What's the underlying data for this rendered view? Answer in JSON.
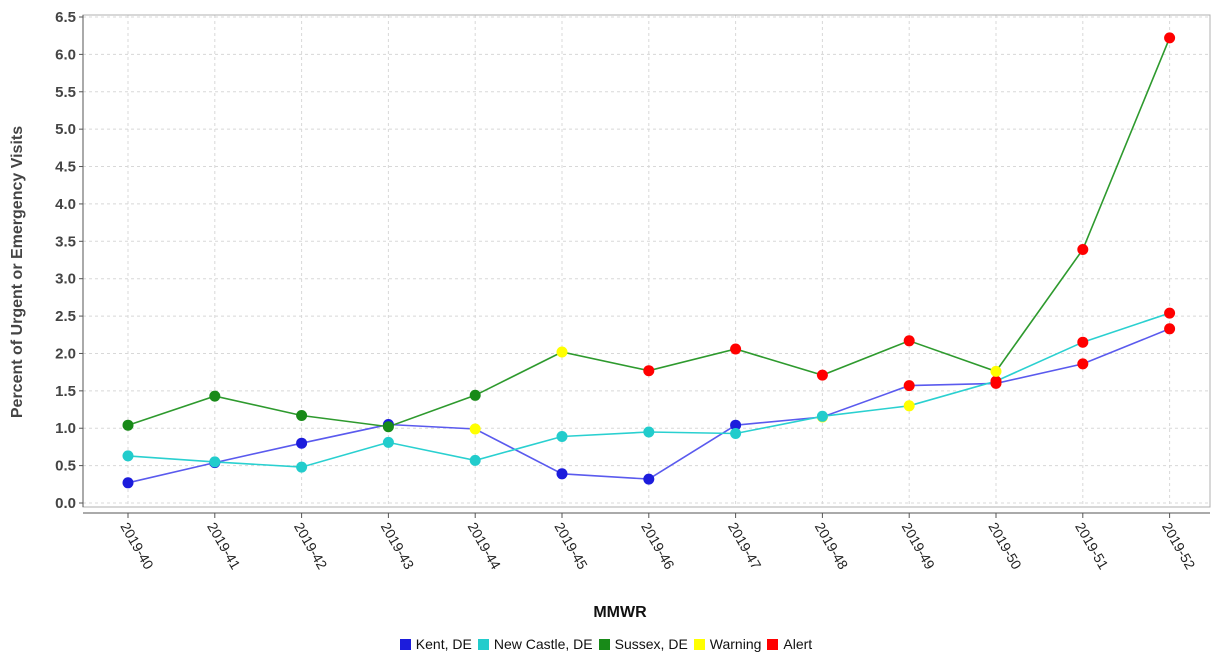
{
  "chart_data": {
    "type": "line",
    "xlabel": "MMWR",
    "ylabel": "Percent of Urgent or Emergency Visits",
    "ylim": [
      0,
      6.5
    ],
    "yticks": [
      "0.0",
      "0.5",
      "1.0",
      "1.5",
      "2.0",
      "2.5",
      "3.0",
      "3.5",
      "4.0",
      "4.5",
      "5.0",
      "5.5",
      "6.0",
      "6.5"
    ],
    "categories": [
      "2019-40",
      "2019-41",
      "2019-42",
      "2019-43",
      "2019-44",
      "2019-45",
      "2019-46",
      "2019-47",
      "2019-48",
      "2019-49",
      "2019-50",
      "2019-51",
      "2019-52"
    ],
    "grid": true,
    "legend_position": "bottom",
    "series": [
      {
        "name": "Kent, DE",
        "color": "#1c1cdc",
        "line_color": "#5a5aee",
        "values": [
          0.27,
          0.54,
          0.8,
          1.05,
          0.99,
          0.39,
          0.32,
          1.04,
          1.15,
          1.57,
          1.6,
          1.86,
          2.33
        ],
        "markers": [
          "normal",
          "normal",
          "normal",
          "normal",
          "warning",
          "normal",
          "normal",
          "normal",
          "warning",
          "alert",
          "alert",
          "alert",
          "alert"
        ]
      },
      {
        "name": "New Castle, DE",
        "color": "#22cccc",
        "line_color": "#2ad0d0",
        "values": [
          0.63,
          0.55,
          0.48,
          0.81,
          0.57,
          0.89,
          0.95,
          0.93,
          1.16,
          1.3,
          1.63,
          2.15,
          2.54
        ],
        "markers": [
          "normal",
          "normal",
          "normal",
          "normal",
          "normal",
          "normal",
          "normal",
          "normal",
          "normal",
          "warning",
          "alert",
          "alert",
          "alert"
        ]
      },
      {
        "name": "Sussex, DE",
        "color": "#188a18",
        "line_color": "#2e9a2e",
        "values": [
          1.04,
          1.43,
          1.17,
          1.02,
          1.44,
          2.02,
          1.77,
          2.06,
          1.71,
          2.17,
          1.76,
          3.39,
          6.22
        ],
        "markers": [
          "normal",
          "normal",
          "normal",
          "normal",
          "normal",
          "warning",
          "alert",
          "alert",
          "alert",
          "alert",
          "warning",
          "alert",
          "alert"
        ]
      }
    ],
    "status_colors": {
      "warning": "#ffff00",
      "alert": "#ff0000"
    },
    "legend": [
      {
        "label": "Kent, DE",
        "color": "#1c1cdc"
      },
      {
        "label": "New Castle, DE",
        "color": "#22cccc"
      },
      {
        "label": "Sussex, DE",
        "color": "#188a18"
      },
      {
        "label": "Warning",
        "color": "#ffff00"
      },
      {
        "label": "Alert",
        "color": "#ff0000"
      }
    ]
  }
}
